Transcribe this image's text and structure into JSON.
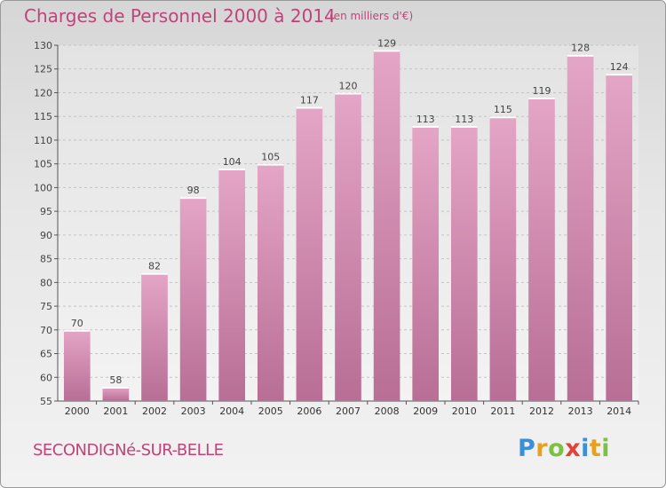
{
  "title": "Charges de Personnel 2000 à 2014",
  "unit_note": "(en milliers d'€)",
  "commune": "SECONDIGNé-SUR-BELLE",
  "brand": {
    "letters": [
      "P",
      "r",
      "o",
      "x",
      "i",
      "t",
      "i"
    ],
    "colors": [
      "#3a8fd9",
      "#e8a11f",
      "#7cc242",
      "#e0433b",
      "#3a8fd9",
      "#e8a11f",
      "#7cc242"
    ]
  },
  "colors": {
    "bar": "#d27fa8",
    "accent": "#c0437a"
  },
  "chart_data": {
    "type": "bar",
    "title": "Charges de Personnel 2000 à 2014",
    "categories": [
      "2000",
      "2001",
      "2002",
      "2003",
      "2004",
      "2005",
      "2006",
      "2007",
      "2008",
      "2009",
      "2010",
      "2011",
      "2012",
      "2013",
      "2014"
    ],
    "values": [
      70,
      58,
      82,
      98,
      104,
      105,
      117,
      120,
      129,
      113,
      113,
      115,
      119,
      128,
      124
    ],
    "ylim": [
      55,
      130
    ],
    "yticks": [
      55,
      60,
      65,
      70,
      75,
      80,
      85,
      90,
      95,
      100,
      105,
      110,
      115,
      120,
      125,
      130
    ],
    "grid": true,
    "xlabel": "",
    "ylabel": ""
  }
}
